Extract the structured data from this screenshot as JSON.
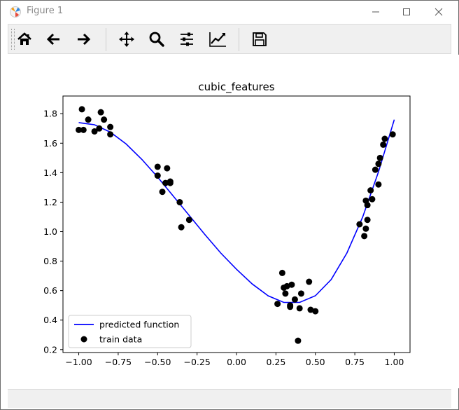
{
  "window": {
    "title": "Figure 1"
  },
  "toolbar": {
    "buttons": [
      {
        "name": "home-icon"
      },
      {
        "name": "back-arrow-icon"
      },
      {
        "name": "forward-arrow-icon"
      },
      {
        "name": "pan-icon"
      },
      {
        "name": "zoom-icon"
      },
      {
        "name": "configure-subplots-icon"
      },
      {
        "name": "edit-axis-icon"
      },
      {
        "name": "save-icon"
      }
    ]
  },
  "chart_data": {
    "type": "line",
    "title": "cubic_features",
    "xlabel": "",
    "ylabel": "",
    "xlim": [
      -1.1,
      1.1
    ],
    "ylim": [
      0.18,
      1.92
    ],
    "x_ticks": [
      -1.0,
      -0.75,
      -0.5,
      -0.25,
      0.0,
      0.25,
      0.5,
      0.75,
      1.0
    ],
    "x_tick_labels": [
      "−1.00",
      "−0.75",
      "−0.50",
      "−0.25",
      "0.00",
      "0.25",
      "0.50",
      "0.75",
      "1.00"
    ],
    "y_ticks": [
      0.2,
      0.4,
      0.6,
      0.8,
      1.0,
      1.2,
      1.4,
      1.6,
      1.8
    ],
    "y_tick_labels": [
      "0.2",
      "0.4",
      "0.6",
      "0.8",
      "1.0",
      "1.2",
      "1.4",
      "1.6",
      "1.8"
    ],
    "legend": {
      "placement": "lower-left",
      "entries": [
        {
          "label": "predicted function",
          "marker": "line",
          "color": "#0000ff"
        },
        {
          "label": "train data",
          "marker": "dot",
          "color": "#000000"
        }
      ]
    },
    "series": [
      {
        "name": "predicted function",
        "kind": "line",
        "color": "#0000ff",
        "x": [
          -1.0,
          -0.9,
          -0.8,
          -0.7,
          -0.6,
          -0.5,
          -0.4,
          -0.3,
          -0.2,
          -0.1,
          0.0,
          0.1,
          0.2,
          0.3,
          0.4,
          0.5,
          0.6,
          0.7,
          0.8,
          0.9,
          1.0
        ],
        "y": [
          1.74,
          1.725,
          1.675,
          1.595,
          1.49,
          1.37,
          1.24,
          1.11,
          0.98,
          0.855,
          0.745,
          0.645,
          0.565,
          0.52,
          0.52,
          0.565,
          0.675,
          0.855,
          1.1,
          1.405,
          1.76
        ]
      },
      {
        "name": "train data",
        "kind": "scatter",
        "color": "#000000",
        "x": [
          -1.0,
          -0.98,
          -0.97,
          -0.94,
          -0.9,
          -0.87,
          -0.86,
          -0.84,
          -0.8,
          -0.8,
          -0.5,
          -0.5,
          -0.47,
          -0.45,
          -0.44,
          -0.42,
          -0.42,
          -0.36,
          -0.35,
          -0.3,
          0.26,
          0.29,
          0.3,
          0.31,
          0.32,
          0.34,
          0.34,
          0.35,
          0.37,
          0.39,
          0.4,
          0.41,
          0.46,
          0.47,
          0.5,
          0.78,
          0.81,
          0.82,
          0.82,
          0.83,
          0.83,
          0.85,
          0.86,
          0.88,
          0.9,
          0.9,
          0.91,
          0.93,
          0.94,
          0.99
        ],
        "y": [
          1.69,
          1.83,
          1.69,
          1.76,
          1.68,
          1.7,
          1.81,
          1.76,
          1.66,
          1.71,
          1.44,
          1.38,
          1.27,
          1.33,
          1.43,
          1.34,
          1.33,
          1.2,
          1.03,
          1.08,
          0.51,
          0.72,
          0.62,
          0.58,
          0.63,
          0.5,
          0.49,
          0.64,
          0.54,
          0.26,
          0.48,
          0.58,
          0.66,
          0.47,
          0.46,
          1.05,
          0.97,
          1.02,
          1.21,
          1.08,
          1.18,
          1.28,
          1.22,
          1.42,
          1.32,
          1.46,
          1.5,
          1.59,
          1.63,
          1.66
        ]
      }
    ]
  }
}
